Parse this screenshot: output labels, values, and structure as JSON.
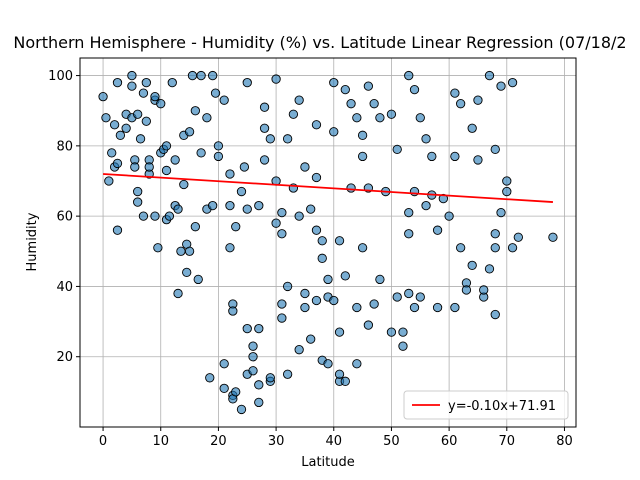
{
  "chart_data": {
    "type": "scatter",
    "title": "Northern Hemisphere - Humidity (%) vs. Latitude Linear Regression (07/18/2",
    "x_label": "Latitude",
    "y_label": "Humidity",
    "xlim": [
      -4,
      82
    ],
    "ylim": [
      0,
      105
    ],
    "xticks": [
      0,
      10,
      20,
      30,
      40,
      50,
      60,
      70,
      80
    ],
    "yticks": [
      20,
      40,
      60,
      80,
      100
    ],
    "grid": true,
    "legend_position": "lower right",
    "color": "#1f77b4",
    "x": [
      0,
      0.5,
      1,
      1.5,
      2,
      2.5,
      2,
      2.5,
      3,
      2.5,
      4,
      4,
      5,
      5,
      5,
      5.5,
      5.5,
      6,
      6,
      6,
      6.5,
      7,
      7,
      7.5,
      7.5,
      8,
      8,
      8,
      9,
      9,
      9,
      9.5,
      10,
      10,
      10.5,
      11,
      11,
      11,
      11.5,
      12,
      12.5,
      12.5,
      13,
      13,
      13.5,
      14,
      14,
      14.5,
      14.5,
      15,
      15,
      15.5,
      16,
      16,
      16.5,
      17,
      17,
      18,
      18,
      18.5,
      19,
      19,
      19.5,
      20,
      20,
      21,
      21,
      21,
      22,
      22,
      22,
      22.5,
      22.5,
      22.5,
      22.5,
      23,
      23,
      24,
      24,
      24.5,
      25,
      25,
      25,
      25,
      26,
      26,
      26,
      27,
      27,
      27,
      27,
      28,
      28,
      28,
      29,
      29,
      29,
      30,
      30,
      30,
      31,
      31,
      31,
      31,
      32,
      32,
      32,
      33,
      33,
      34,
      34,
      34,
      35,
      35,
      35,
      36,
      36,
      37,
      37,
      37,
      37,
      38,
      38,
      38,
      39,
      39,
      39,
      40,
      40,
      40,
      41,
      41,
      41,
      41,
      42,
      42,
      42,
      43,
      43,
      44,
      44,
      44,
      45,
      45,
      45,
      46,
      46,
      46,
      47,
      47,
      48,
      48,
      49,
      50,
      50,
      51,
      51,
      52,
      52,
      53,
      53,
      53,
      53,
      54,
      54,
      54,
      55,
      55,
      56,
      56,
      57,
      57,
      58,
      58,
      59,
      60,
      61,
      61,
      61,
      62,
      62,
      63,
      63,
      64,
      64,
      65,
      65,
      66,
      66,
      67,
      67,
      68,
      68,
      68,
      68,
      69,
      69,
      70,
      70,
      71,
      71,
      72,
      78
    ],
    "values": [
      94,
      88,
      70,
      78,
      86,
      98,
      74,
      75,
      83,
      56,
      89,
      85,
      100,
      97,
      88,
      76,
      74,
      67,
      64,
      89,
      82,
      95,
      60,
      98,
      87,
      76,
      72,
      74,
      93,
      60,
      94,
      51,
      92,
      78,
      79,
      80,
      73,
      59,
      60,
      98,
      76,
      63,
      62,
      38,
      50,
      69,
      83,
      52,
      44,
      50,
      84,
      100,
      90,
      57,
      42,
      78,
      100,
      88,
      62,
      14,
      63,
      100,
      95,
      80,
      77,
      11,
      18,
      93,
      72,
      63,
      51,
      35,
      33,
      9,
      8,
      10,
      57,
      5,
      67,
      74,
      28,
      98,
      15,
      62,
      20,
      16,
      23,
      7,
      12,
      28,
      63,
      85,
      91,
      76,
      13,
      14,
      82,
      99,
      70,
      58,
      55,
      31,
      35,
      61,
      40,
      82,
      15,
      89,
      68,
      60,
      22,
      93,
      74,
      34,
      38,
      25,
      62,
      36,
      86,
      71,
      56,
      53,
      19,
      48,
      42,
      37,
      18,
      98,
      84,
      36,
      27,
      13,
      15,
      53,
      43,
      96,
      13,
      92,
      68,
      34,
      18,
      88,
      83,
      77,
      51,
      97,
      68,
      29,
      92,
      35,
      42,
      88,
      67,
      27,
      89,
      79,
      37,
      23,
      27,
      100,
      61,
      55,
      38,
      96,
      34,
      67,
      37,
      88,
      82,
      63,
      66,
      77,
      56,
      34,
      65,
      60,
      34,
      95,
      77,
      51,
      92,
      41,
      39,
      85,
      46,
      76,
      93,
      37,
      39,
      100,
      45,
      51,
      32,
      55,
      79,
      97,
      61,
      67,
      70,
      98,
      51,
      54,
      54
    ],
    "regression": {
      "name": "y=-0.10x+71.91",
      "color": "#ff0000",
      "x": [
        0,
        78
      ],
      "values": [
        72,
        64
      ]
    }
  }
}
